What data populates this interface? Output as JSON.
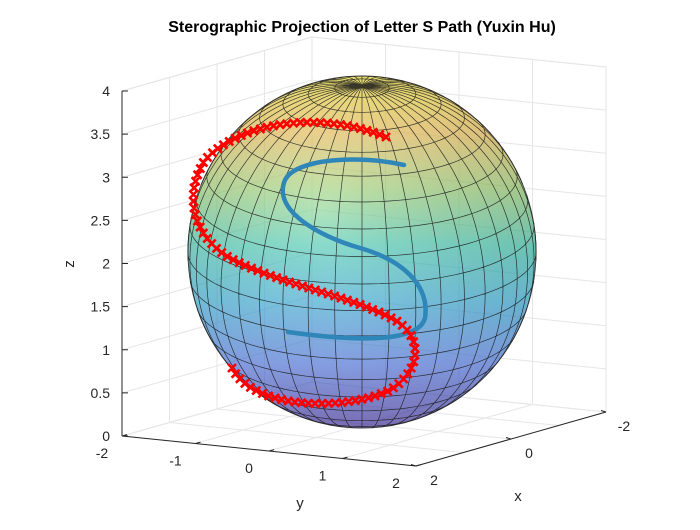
{
  "chart_data": {
    "type": "3d-surface-with-paths",
    "title": "Sterographic Projection of Letter S Path (Yuxin Hu)",
    "xlabel": "x",
    "ylabel": "y",
    "zlabel": "z",
    "xlim": [
      -2,
      2
    ],
    "ylim": [
      -2,
      2
    ],
    "zlim": [
      0,
      4
    ],
    "x_ticks": [
      "-2",
      "0",
      "2"
    ],
    "y_ticks": [
      "-2",
      "-1",
      "0",
      "1",
      "2"
    ],
    "z_ticks": [
      "0",
      "0.5",
      "1",
      "1.5",
      "2",
      "2.5",
      "3",
      "3.5",
      "4"
    ],
    "z_tick_values": [
      0,
      0.5,
      1,
      1.5,
      2,
      2.5,
      3,
      3.5,
      4
    ],
    "grid": true,
    "colormap": "parula",
    "sphere": {
      "center": [
        0,
        0,
        2
      ],
      "radius": 2,
      "opacity": 0.5
    },
    "series": [
      {
        "marker": "line",
        "color": "#2f86b8"
      },
      {
        "marker": "x",
        "color": "#ff0000"
      }
    ]
  }
}
